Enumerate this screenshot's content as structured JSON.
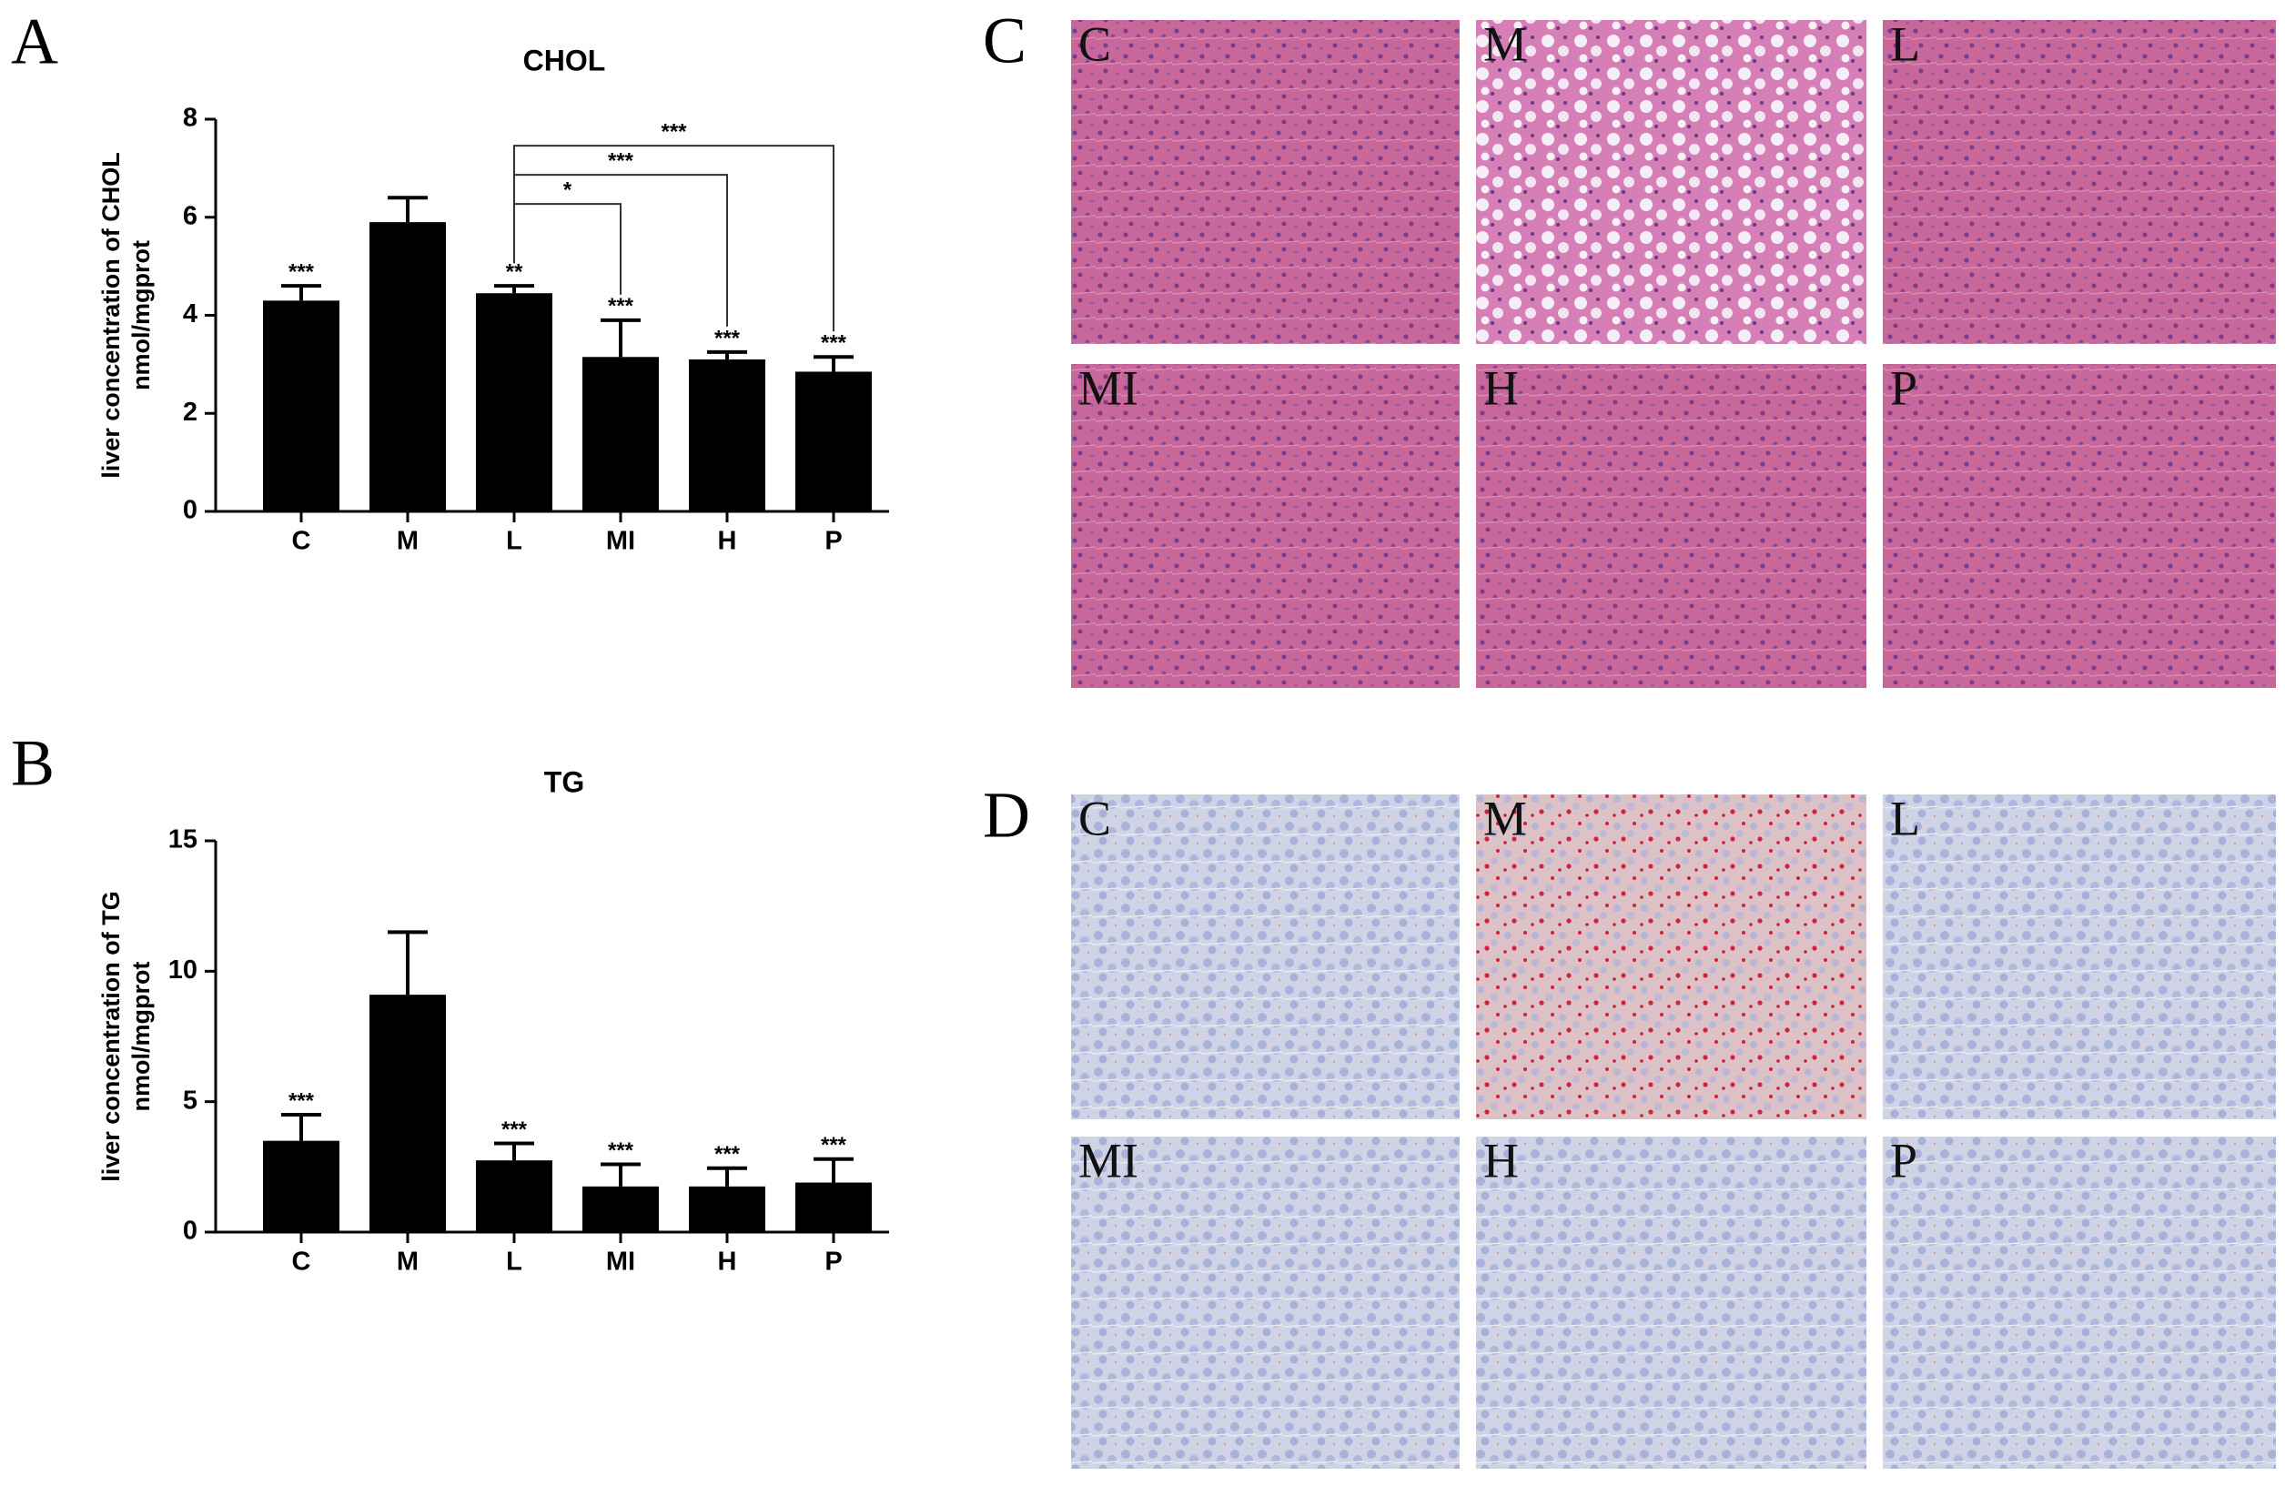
{
  "chart_data": [
    {
      "type": "bar",
      "panel_label": "A",
      "title": "CHOL",
      "y_label": [
        "liver concentration of CHOL",
        "nmol/mgprot"
      ],
      "categories": [
        "C",
        "M",
        "L",
        "MI",
        "H",
        "P"
      ],
      "values": [
        4.3,
        5.9,
        4.45,
        3.15,
        3.1,
        2.85
      ],
      "errors": [
        0.3,
        0.5,
        0.15,
        0.75,
        0.15,
        0.3
      ],
      "annotations": [
        "***",
        null,
        "**",
        "***",
        "***",
        "***"
      ],
      "comparisons": [
        {
          "from": "L",
          "to": "MI",
          "label": "*"
        },
        {
          "from": "L",
          "to": "H",
          "label": "***"
        },
        {
          "from": "L",
          "to": "P",
          "label": "***"
        }
      ],
      "color": "#000000",
      "ylim": [
        0,
        8
      ],
      "yticks": [
        0,
        2,
        4,
        6,
        8
      ]
    },
    {
      "type": "bar",
      "panel_label": "B",
      "title": "TG",
      "y_label": [
        "liver concentration of TG",
        "nmol/mgprot"
      ],
      "categories": [
        "C",
        "M",
        "L",
        "MI",
        "H",
        "P"
      ],
      "values": [
        3.5,
        9.1,
        2.75,
        1.75,
        1.75,
        1.9
      ],
      "errors": [
        1.0,
        2.4,
        0.65,
        0.85,
        0.7,
        0.9
      ],
      "annotations": [
        "***",
        null,
        "***",
        "***",
        "***",
        "***"
      ],
      "comparisons": [],
      "color": "#000000",
      "ylim": [
        0,
        15
      ],
      "yticks": [
        0,
        5,
        10,
        15
      ]
    }
  ],
  "micrographs": [
    {
      "panel_label": "C",
      "stain": "he",
      "panels": [
        "C",
        "M",
        "L",
        "MI",
        "H",
        "P"
      ]
    },
    {
      "panel_label": "D",
      "stain": "oro",
      "panels": [
        "C",
        "M",
        "L",
        "MI",
        "H",
        "P"
      ]
    }
  ]
}
